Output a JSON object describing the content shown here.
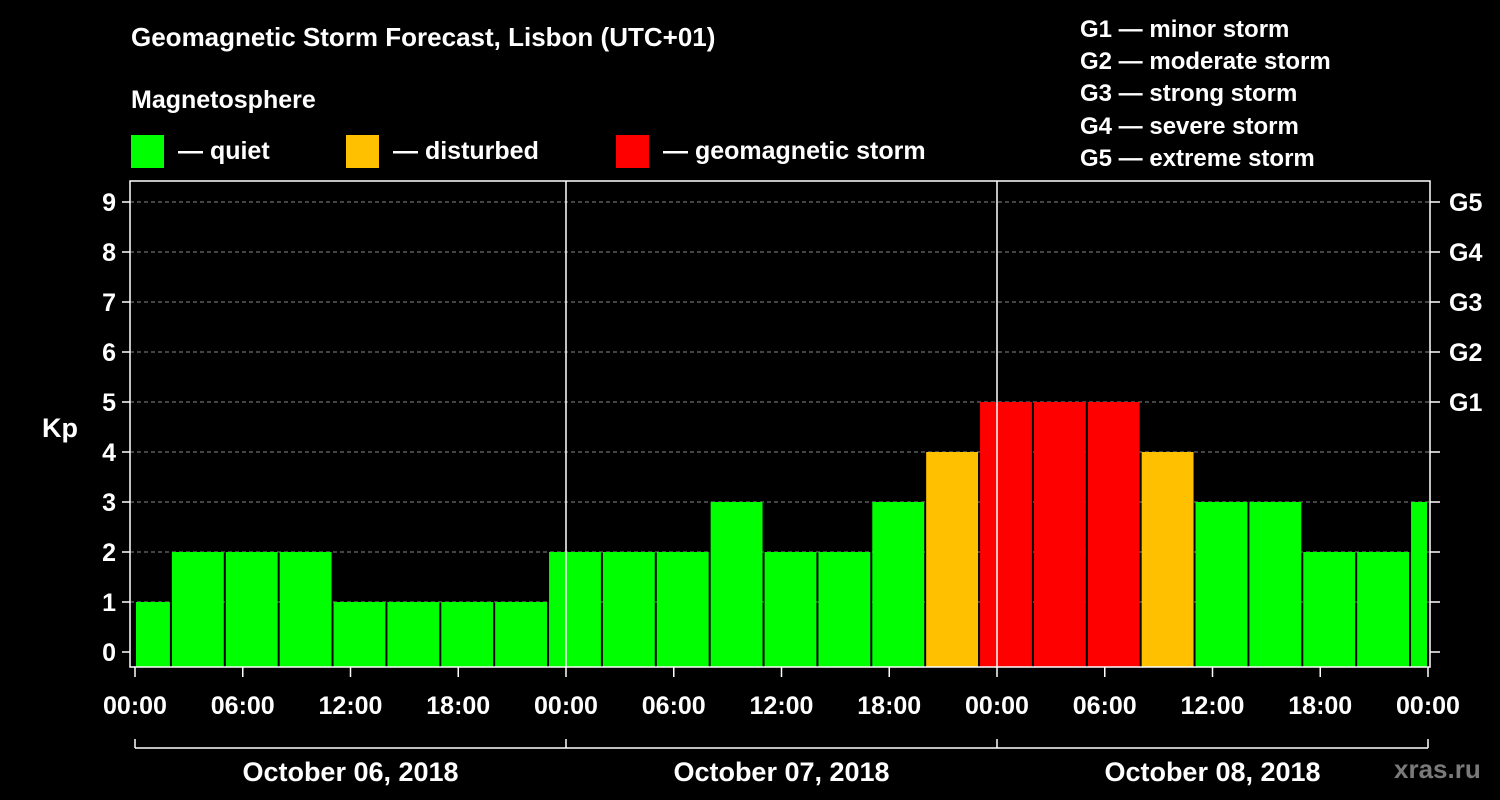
{
  "title": "Geomagnetic Storm Forecast, Lisbon (UTC+01)",
  "subtitle": "Magnetosphere",
  "legend": [
    {
      "label": "— quiet",
      "color": "#00ff00"
    },
    {
      "label": "— disturbed",
      "color": "#ffc000"
    },
    {
      "label": "— geomagnetic storm",
      "color": "#ff0000"
    }
  ],
  "storm_scale": [
    "G1 — minor storm",
    "G2 — moderate storm",
    "G3 — strong storm",
    "G4 — severe storm",
    "G5 — extreme storm"
  ],
  "watermark": "xras.ru",
  "colors": {
    "quiet": "#00ff00",
    "disturbed": "#ffc000",
    "storm": "#ff0000",
    "background": "#000000",
    "axis": "#ffffff",
    "grid": "#888888"
  },
  "chart_data": {
    "type": "bar",
    "ylabel": "Kp",
    "ylim": [
      0,
      9
    ],
    "yticks": [
      "0",
      "1",
      "2",
      "3",
      "4",
      "5",
      "6",
      "7",
      "8",
      "9"
    ],
    "right_ticks": [
      {
        "kp": 5,
        "label": "G1"
      },
      {
        "kp": 6,
        "label": "G2"
      },
      {
        "kp": 7,
        "label": "G3"
      },
      {
        "kp": 8,
        "label": "G4"
      },
      {
        "kp": 9,
        "label": "G5"
      }
    ],
    "xticks": [
      "00:00",
      "06:00",
      "12:00",
      "18:00",
      "00:00",
      "06:00",
      "12:00",
      "18:00",
      "00:00",
      "06:00",
      "12:00",
      "18:00",
      "00:00"
    ],
    "days": [
      "October 06, 2018",
      "October 07, 2018",
      "October 08, 2018"
    ],
    "x_start": "2018-10-06 00:00",
    "interval_hours": 3,
    "grid": true,
    "values": [
      {
        "x": "2018-10-05 23:00",
        "kp": 1,
        "level": "quiet"
      },
      {
        "x": "2018-10-06 02:00",
        "kp": 2,
        "level": "quiet"
      },
      {
        "x": "2018-10-06 05:00",
        "kp": 2,
        "level": "quiet"
      },
      {
        "x": "2018-10-06 08:00",
        "kp": 2,
        "level": "quiet"
      },
      {
        "x": "2018-10-06 11:00",
        "kp": 1,
        "level": "quiet"
      },
      {
        "x": "2018-10-06 14:00",
        "kp": 1,
        "level": "quiet"
      },
      {
        "x": "2018-10-06 17:00",
        "kp": 1,
        "level": "quiet"
      },
      {
        "x": "2018-10-06 20:00",
        "kp": 1,
        "level": "quiet"
      },
      {
        "x": "2018-10-06 23:00",
        "kp": 2,
        "level": "quiet"
      },
      {
        "x": "2018-10-07 02:00",
        "kp": 2,
        "level": "quiet"
      },
      {
        "x": "2018-10-07 05:00",
        "kp": 2,
        "level": "quiet"
      },
      {
        "x": "2018-10-07 08:00",
        "kp": 3,
        "level": "quiet"
      },
      {
        "x": "2018-10-07 11:00",
        "kp": 2,
        "level": "quiet"
      },
      {
        "x": "2018-10-07 14:00",
        "kp": 2,
        "level": "quiet"
      },
      {
        "x": "2018-10-07 17:00",
        "kp": 3,
        "level": "quiet"
      },
      {
        "x": "2018-10-07 20:00",
        "kp": 4,
        "level": "disturbed"
      },
      {
        "x": "2018-10-07 23:00",
        "kp": 5,
        "level": "storm"
      },
      {
        "x": "2018-10-08 02:00",
        "kp": 5,
        "level": "storm"
      },
      {
        "x": "2018-10-08 05:00",
        "kp": 5,
        "level": "storm"
      },
      {
        "x": "2018-10-08 08:00",
        "kp": 4,
        "level": "disturbed"
      },
      {
        "x": "2018-10-08 11:00",
        "kp": 3,
        "level": "quiet"
      },
      {
        "x": "2018-10-08 14:00",
        "kp": 3,
        "level": "quiet"
      },
      {
        "x": "2018-10-08 17:00",
        "kp": 2,
        "level": "quiet"
      },
      {
        "x": "2018-10-08 20:00",
        "kp": 2,
        "level": "quiet"
      },
      {
        "x": "2018-10-08 23:00",
        "kp": 3,
        "level": "quiet"
      }
    ]
  }
}
